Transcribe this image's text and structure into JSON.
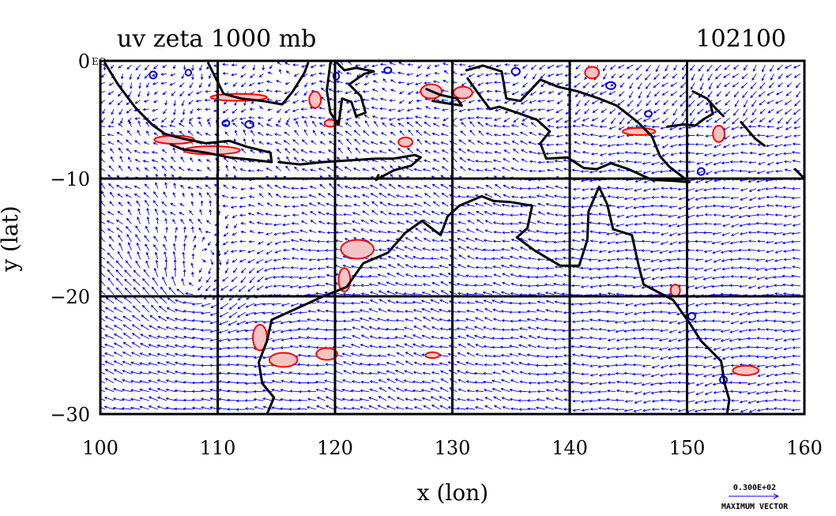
{
  "title": "uv zeta 1000 mb",
  "timestamp": "102100",
  "xlabel": "x (lon)",
  "ylabel": "y (lat)",
  "corner_label": "EQ",
  "x_ticks": [
    "100",
    "110",
    "120",
    "130",
    "140",
    "150",
    "160"
  ],
  "y_ticks": [
    "0",
    "−10",
    "−20",
    "−30"
  ],
  "vector_legend": {
    "value": "0.300E+02",
    "label": "MAXIMUM VECTOR"
  },
  "colors": {
    "coastline": "#000000",
    "vectors": "#0000ff",
    "positive_vorticity": "#ff0000",
    "positive_fill": "#f4c4c4",
    "negative_vorticity": "#0000cc",
    "grid": "#000000"
  },
  "chart_data": {
    "type": "vector-field-map",
    "xlim": [
      100,
      160
    ],
    "ylim": [
      -30,
      0
    ],
    "x_grid": [
      110,
      120,
      130,
      140,
      150
    ],
    "y_grid": [
      -10,
      -20
    ],
    "grid": true,
    "coastlines": [
      {
        "name": "sumatra-java",
        "points": [
          [
            100.4,
            -0.2
          ],
          [
            101.5,
            -2
          ],
          [
            103,
            -4
          ],
          [
            104.5,
            -5.5
          ],
          [
            105.5,
            -6.2
          ],
          [
            107,
            -6.6
          ],
          [
            109,
            -7
          ],
          [
            111,
            -6.8
          ],
          [
            112.5,
            -7.3
          ],
          [
            114.5,
            -7.8
          ],
          [
            114.6,
            -8.6
          ],
          [
            113,
            -8.4
          ],
          [
            111,
            -8.2
          ],
          [
            109,
            -7.8
          ],
          [
            107,
            -7.5
          ],
          [
            106,
            -7.1
          ]
        ]
      },
      {
        "name": "borneo-south",
        "points": [
          [
            109.2,
            -0.2
          ],
          [
            110.5,
            -2.8
          ],
          [
            112,
            -3.2
          ],
          [
            113.8,
            -3.4
          ],
          [
            115.5,
            -3.7
          ],
          [
            116.4,
            -2.6
          ],
          [
            117.4,
            -1.0
          ],
          [
            117.7,
            -0.2
          ]
        ]
      },
      {
        "name": "lesser-sundas",
        "points": [
          [
            115.2,
            -8.6
          ],
          [
            117,
            -8.8
          ],
          [
            119,
            -8.6
          ],
          [
            120.5,
            -8.5
          ],
          [
            122,
            -8.4
          ],
          [
            123.5,
            -8.3
          ],
          [
            125,
            -8.3
          ],
          [
            126.8,
            -8.0
          ],
          [
            127.3,
            -8.2
          ],
          [
            126.5,
            -8.9
          ],
          [
            125,
            -9.3
          ],
          [
            123.5,
            -10.1
          ],
          [
            123.7,
            -9.7
          ]
        ]
      },
      {
        "name": "sulawesi",
        "points": [
          [
            119.6,
            -0.2
          ],
          [
            119.3,
            -2.5
          ],
          [
            119.6,
            -4.4
          ],
          [
            120.3,
            -5.4
          ],
          [
            120.6,
            -3.2
          ],
          [
            121.4,
            -3.5
          ],
          [
            121.8,
            -4.7
          ],
          [
            122.6,
            -4.4
          ],
          [
            122.2,
            -3.0
          ],
          [
            121.2,
            -2.0
          ],
          [
            122.5,
            -1.1
          ],
          [
            123.3,
            -0.9
          ],
          [
            121.8,
            -0.6
          ],
          [
            120.8,
            -0.8
          ],
          [
            120.2,
            -0.2
          ]
        ]
      },
      {
        "name": "seram-moluccas",
        "points": [
          [
            127.8,
            -2.4
          ],
          [
            129,
            -2.9
          ],
          [
            130.4,
            -3.2
          ],
          [
            130.8,
            -3.8
          ],
          [
            129.5,
            -3.6
          ],
          [
            128.3,
            -3.4
          ]
        ]
      },
      {
        "name": "new-guinea-australia",
        "points": [
          [
            131.2,
            -0.8
          ],
          [
            132.6,
            -0.4
          ],
          [
            134.2,
            -0.9
          ],
          [
            134.6,
            -3.2
          ],
          [
            135.8,
            -3.4
          ],
          [
            137.5,
            -1.6
          ],
          [
            139,
            -2.2
          ],
          [
            140.7,
            -2.6
          ],
          [
            142.5,
            -3.2
          ],
          [
            144,
            -3.8
          ],
          [
            145.8,
            -5.2
          ],
          [
            147,
            -6.4
          ],
          [
            147.7,
            -8.1
          ],
          [
            148.5,
            -9.0
          ],
          [
            150.2,
            -10.3
          ],
          [
            149,
            -10.2
          ],
          [
            147,
            -10.1
          ],
          [
            145,
            -9.2
          ],
          [
            143.5,
            -8.7
          ],
          [
            142.3,
            -9.2
          ],
          [
            141.2,
            -9.1
          ],
          [
            139.8,
            -8.2
          ],
          [
            138,
            -8.3
          ],
          [
            137.5,
            -7.0
          ],
          [
            138.3,
            -6.0
          ],
          [
            137.2,
            -5.0
          ],
          [
            135.5,
            -4.4
          ],
          [
            134,
            -3.9
          ],
          [
            133.2,
            -4.1
          ],
          [
            132.3,
            -2.9
          ],
          [
            131.3,
            -1.5
          ]
        ]
      },
      {
        "name": "australia",
        "points": [
          [
            114.2,
            -30
          ],
          [
            114.8,
            -28.6
          ],
          [
            113.8,
            -27.4
          ],
          [
            113.5,
            -25.6
          ],
          [
            114.2,
            -23.8
          ],
          [
            114.6,
            -22.0
          ],
          [
            116.8,
            -21.0
          ],
          [
            119,
            -20.0
          ],
          [
            121,
            -19.2
          ],
          [
            122.4,
            -17.2
          ],
          [
            124.5,
            -16.3
          ],
          [
            126,
            -14.6
          ],
          [
            127.4,
            -13.6
          ],
          [
            129,
            -14.8
          ],
          [
            129.6,
            -13.2
          ],
          [
            130.6,
            -12.3
          ],
          [
            132.5,
            -11.5
          ],
          [
            133.5,
            -11.9
          ],
          [
            135,
            -12.0
          ],
          [
            136.8,
            -12.3
          ],
          [
            136.4,
            -14.2
          ],
          [
            135.5,
            -15.0
          ],
          [
            137,
            -16.1
          ],
          [
            139.2,
            -17.4
          ],
          [
            140.8,
            -17.4
          ],
          [
            141.5,
            -15.2
          ],
          [
            141.6,
            -12.8
          ],
          [
            142.5,
            -10.7
          ],
          [
            143.2,
            -12.2
          ],
          [
            143.7,
            -14.3
          ],
          [
            145.3,
            -14.8
          ],
          [
            145.9,
            -17.5
          ],
          [
            146.3,
            -19.0
          ],
          [
            148.8,
            -20.3
          ],
          [
            150.3,
            -22.4
          ],
          [
            151.2,
            -23.8
          ],
          [
            152.9,
            -25.5
          ],
          [
            153.2,
            -27.4
          ],
          [
            153.6,
            -28.8
          ],
          [
            153.4,
            -30
          ]
        ]
      },
      {
        "name": "new-britain",
        "points": [
          [
            148.3,
            -5.6
          ],
          [
            149.7,
            -5.4
          ],
          [
            150.7,
            -5.5
          ],
          [
            151.5,
            -4.9
          ],
          [
            152.2,
            -4.5
          ],
          [
            152.0,
            -3.7
          ]
        ]
      },
      {
        "name": "new-ireland",
        "points": [
          [
            150.5,
            -2.6
          ],
          [
            151.7,
            -3.2
          ],
          [
            152.5,
            -4.1
          ],
          [
            153.1,
            -4.7
          ]
        ]
      },
      {
        "name": "solomons",
        "points": [
          [
            154.6,
            -5.2
          ],
          [
            155.8,
            -6.6
          ],
          [
            156.6,
            -7.2
          ]
        ]
      },
      {
        "name": "san-cristobal",
        "points": [
          [
            159.2,
            -9.2
          ],
          [
            160,
            -10.0
          ]
        ]
      }
    ],
    "vorticity_positive": [
      {
        "lon": 106.3,
        "lat": -6.7,
        "rx": 1.7,
        "ry": 0.35
      },
      {
        "lon": 109.5,
        "lat": -7.6,
        "rx": 2.4,
        "ry": 0.35
      },
      {
        "lon": 111.8,
        "lat": -3.1,
        "rx": 2.4,
        "ry": 0.3
      },
      {
        "lon": 118.3,
        "lat": -3.3,
        "rx": 0.5,
        "ry": 0.7
      },
      {
        "lon": 119.6,
        "lat": -5.3,
        "rx": 0.5,
        "ry": 0.3
      },
      {
        "lon": 121.9,
        "lat": -16.0,
        "rx": 1.4,
        "ry": 0.8
      },
      {
        "lon": 120.8,
        "lat": -18.6,
        "rx": 0.5,
        "ry": 1.0
      },
      {
        "lon": 113.6,
        "lat": -23.5,
        "rx": 0.6,
        "ry": 1.1
      },
      {
        "lon": 115.6,
        "lat": -25.4,
        "rx": 1.2,
        "ry": 0.6
      },
      {
        "lon": 119.3,
        "lat": -24.9,
        "rx": 0.9,
        "ry": 0.5
      },
      {
        "lon": 126.0,
        "lat": -6.9,
        "rx": 0.6,
        "ry": 0.4
      },
      {
        "lon": 128.2,
        "lat": -2.6,
        "rx": 0.9,
        "ry": 0.6
      },
      {
        "lon": 141.9,
        "lat": -1.0,
        "rx": 0.6,
        "ry": 0.5
      },
      {
        "lon": 145.9,
        "lat": -6.0,
        "rx": 1.4,
        "ry": 0.3
      },
      {
        "lon": 152.7,
        "lat": -6.2,
        "rx": 0.5,
        "ry": 0.7
      },
      {
        "lon": 149.0,
        "lat": -19.5,
        "rx": 0.4,
        "ry": 0.5
      },
      {
        "lon": 155.0,
        "lat": -26.3,
        "rx": 1.1,
        "ry": 0.4
      },
      {
        "lon": 130.9,
        "lat": -2.7,
        "rx": 0.8,
        "ry": 0.5
      },
      {
        "lon": 128.3,
        "lat": -25.0,
        "rx": 0.6,
        "ry": 0.25
      }
    ],
    "vorticity_negative": [
      {
        "lon": 104.5,
        "lat": -1.2,
        "rx": 0.3,
        "ry": 0.3
      },
      {
        "lon": 107.5,
        "lat": -1.0,
        "rx": 0.25,
        "ry": 0.25
      },
      {
        "lon": 112.7,
        "lat": -5.4,
        "rx": 0.35,
        "ry": 0.3
      },
      {
        "lon": 120.1,
        "lat": -1.3,
        "rx": 0.25,
        "ry": 0.3
      },
      {
        "lon": 124.5,
        "lat": -0.8,
        "rx": 0.3,
        "ry": 0.25
      },
      {
        "lon": 135.4,
        "lat": -0.9,
        "rx": 0.35,
        "ry": 0.3
      },
      {
        "lon": 143.5,
        "lat": -2.1,
        "rx": 0.4,
        "ry": 0.3
      },
      {
        "lon": 146.7,
        "lat": -4.5,
        "rx": 0.3,
        "ry": 0.25
      },
      {
        "lon": 151.2,
        "lat": -9.4,
        "rx": 0.3,
        "ry": 0.3
      },
      {
        "lon": 150.4,
        "lat": -21.7,
        "rx": 0.3,
        "ry": 0.3
      },
      {
        "lon": 153.1,
        "lat": -27.1,
        "rx": 0.3,
        "ry": 0.3
      },
      {
        "lon": 110.7,
        "lat": -5.3,
        "rx": 0.3,
        "ry": 0.25
      }
    ]
  }
}
